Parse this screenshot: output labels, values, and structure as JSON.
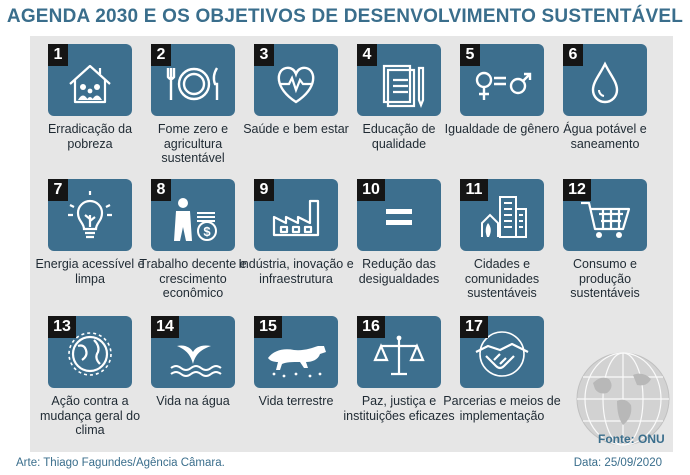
{
  "title": "AGENDA 2030 E OS OBJETIVOS DE DESENVOLVIMENTO SUSTENTÁVEL",
  "goals": [
    {
      "number": "1",
      "label": "Erradicação da pobreza",
      "icon": "house-family-icon"
    },
    {
      "number": "2",
      "label": "Fome zero e agricultura sustentável",
      "icon": "plate-cutlery-icon"
    },
    {
      "number": "3",
      "label": "Saúde e bem estar",
      "icon": "heart-pulse-icon"
    },
    {
      "number": "4",
      "label": "Educação de qualidade",
      "icon": "book-pencil-icon"
    },
    {
      "number": "5",
      "label": "Igualdade de gênero",
      "icon": "gender-symbols-icon"
    },
    {
      "number": "6",
      "label": "Água potável e saneamento",
      "icon": "water-drop-icon"
    },
    {
      "number": "7",
      "label": "Energia acessível e limpa",
      "icon": "lightbulb-icon"
    },
    {
      "number": "8",
      "label": "Trabalho decente e crescimento econômico",
      "icon": "worker-coins-icon"
    },
    {
      "number": "9",
      "label": "Indústria, inovação e infraestrutura",
      "icon": "factory-icon"
    },
    {
      "number": "10",
      "label": "Redução das desigualdades",
      "icon": "equals-icon"
    },
    {
      "number": "11",
      "label": "Cidades e comunidades sustentáveis",
      "icon": "city-buildings-icon"
    },
    {
      "number": "12",
      "label": "Consumo e produção sustentáveis",
      "icon": "shopping-cart-icon"
    },
    {
      "number": "13",
      "label": "Ação contra a mudança geral do clima",
      "icon": "globe-climate-icon"
    },
    {
      "number": "14",
      "label": "Vida na água",
      "icon": "whale-tail-icon"
    },
    {
      "number": "15",
      "label": "Vida terrestre",
      "icon": "jaguar-icon"
    },
    {
      "number": "16",
      "label": "Paz, justiça e instituições eficazes",
      "icon": "scales-icon"
    },
    {
      "number": "17",
      "label": "Parcerias e meios de implementação",
      "icon": "handshake-icon"
    }
  ],
  "source": "Fonte: ONU",
  "credit": "Arte: Thiago Fagundes/Agência Câmara.",
  "date": "Data: 25/09/2020",
  "colors": {
    "tile": "#3d6f8e",
    "panel": "#e6e6e6",
    "title": "#3a6e8c",
    "number_badge": "#151515"
  }
}
